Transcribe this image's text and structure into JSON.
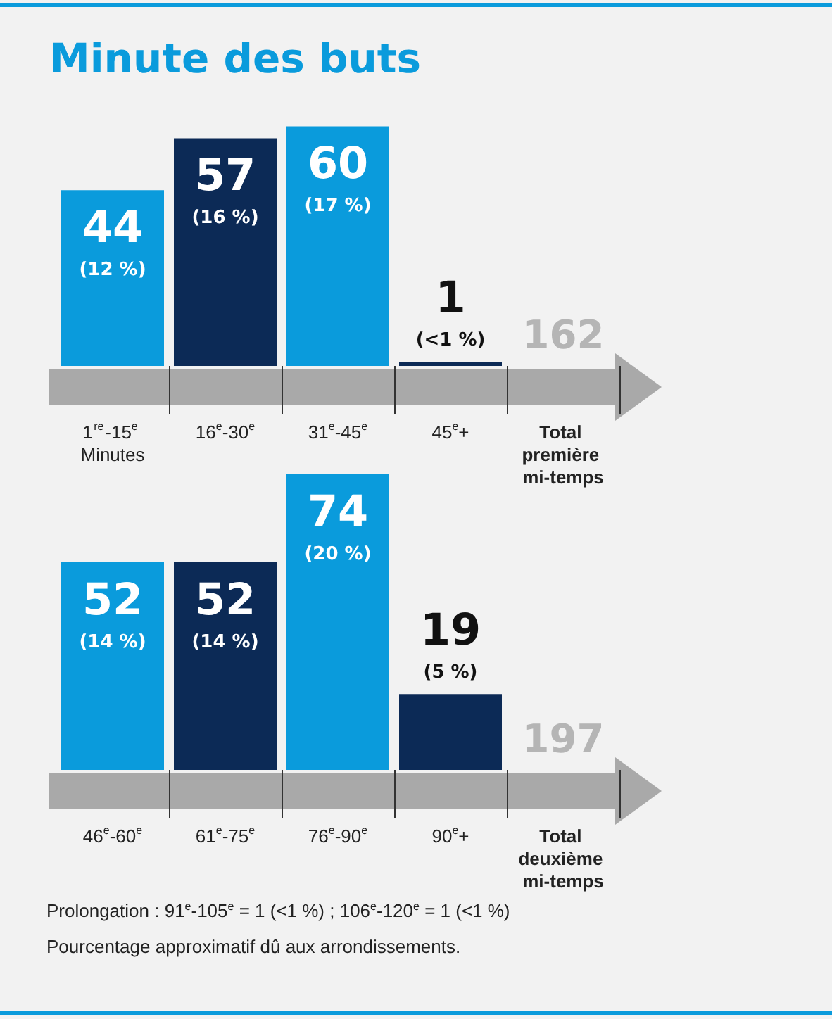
{
  "chart_data": [
    {
      "type": "bar",
      "title": "Minute des buts",
      "categories": [
        "1$^{re}$-15$^{e}$ Minutes",
        "16$^{e}$-30$^{e}$",
        "31$^{e}$-45$^{e}$",
        "45$^{e}$+",
        "Total première mi-temps"
      ],
      "values": [
        44,
        57,
        60,
        1,
        null
      ],
      "value_labels": [
        "44 (12 %)",
        "57 (16 %)",
        "60 (17 %)",
        "1 (<1 %)",
        null
      ],
      "colors": [
        "#0a9bdc",
        "#0c2a56",
        "#0a9bdc",
        "#0c2a56",
        "#0a9bdc"
      ],
      "annotations": [
        "162"
      ]
    },
    {
      "type": "bar",
      "categories": [
        "46$^{e}$-60$^{e}$",
        "61$^{e}$-75$^{e}$",
        "76$^{e}$-90$^{e}$",
        "90$^{e}$+",
        "Total deuxième mi-temps"
      ],
      "values": [
        52,
        52,
        74,
        19,
        null
      ],
      "value_labels": [
        "52 (14 %)",
        "52 (14 %)",
        "74 (20 %)",
        "19 (5 %)",
        null
      ],
      "colors": [
        "#0a9bdc",
        "#0c2a56",
        "#0a9bdc",
        "#0c2a56",
        "#0a9bdc"
      ],
      "annotations": [
        "197",
        "Prolongation : 91$^{e}$-105$^{e}$ = 1 (<1 %) ; 106$^{e}$-120$^{e}$ = 1 (<1 %)",
        "Pourcentage approximatif dû aux arrondissements."
      ]
    }
  ]
}
